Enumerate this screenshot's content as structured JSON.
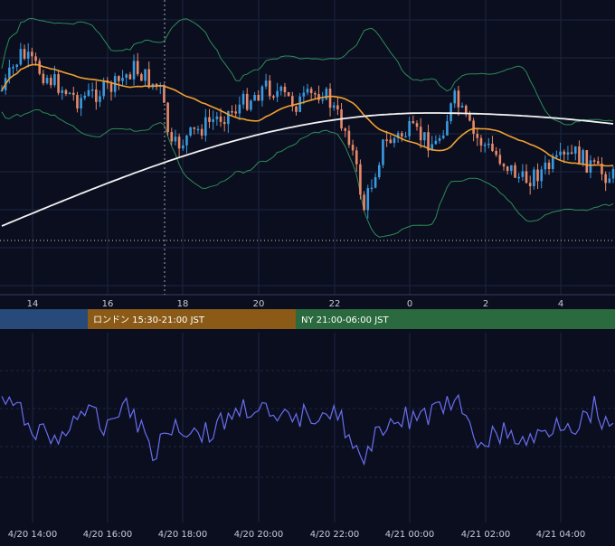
{
  "colors": {
    "background": "#0a0e1f",
    "grid": "#1f2540",
    "up_candle": "#3a9be0",
    "down_candle": "#e88a6a",
    "bollinger": "#2e8b57",
    "ma_short": "#f0a030",
    "ma_long": "#f2f2f2",
    "oscillator": "#6a6ef0",
    "session_tokyo": "#274a7a",
    "session_london": "#8a5a16",
    "session_ny": "#2a6a3e",
    "axis_text": "#c8ccd8"
  },
  "chart_data": [
    {
      "type": "candlestick",
      "panel": "price",
      "x_tick_labels": [
        "14",
        "16",
        "18",
        "20",
        "22",
        "0",
        "2",
        "4"
      ],
      "overlays": [
        "Bollinger Bands",
        "Moving Average (short)",
        "Moving Average (long)"
      ],
      "grid": true,
      "horizontal_dotted_level": true,
      "vertical_dotted_marker": true
    },
    {
      "type": "sessions",
      "panel": "session-bar",
      "sessions": [
        {
          "label": "",
          "color": "#274a7a"
        },
        {
          "label": "ロンドン 15:30-21:00 JST",
          "color": "#8a5a16"
        },
        {
          "label": "NY 21:00-06:00 JST",
          "color": "#2a6a3e"
        }
      ]
    },
    {
      "type": "line",
      "panel": "oscillator",
      "x_tick_labels": [
        "4/20 14:00",
        "4/20 16:00",
        "4/20 18:00",
        "4/20 20:00",
        "4/20 22:00",
        "4/21 00:00",
        "4/21 02:00",
        "4/21 04:00"
      ],
      "grid": true
    }
  ]
}
